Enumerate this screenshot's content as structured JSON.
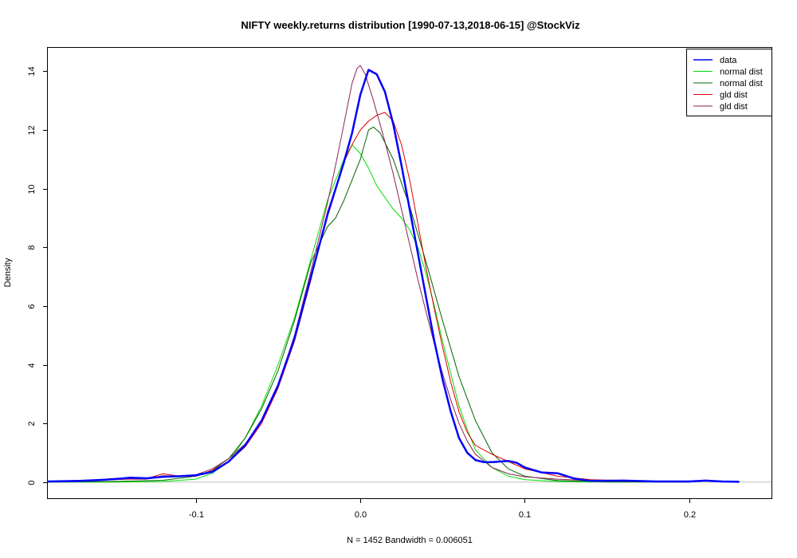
{
  "chart_data": {
    "type": "line",
    "title": "NIFTY weekly.returns distribution [1990-07-13,2018-06-15] @StockViz",
    "xlabel": "N = 1452   Bandwidth = 0.006051",
    "ylabel": "Density",
    "xlim": [
      -0.19,
      0.25
    ],
    "ylim": [
      -0.55,
      14.8
    ],
    "x_ticks": [
      -0.1,
      0.0,
      0.1,
      0.2
    ],
    "x_tick_labels": [
      "-0.1",
      "0.0",
      "0.1",
      "0.2"
    ],
    "y_ticks": [
      0,
      2,
      4,
      6,
      8,
      10,
      12,
      14
    ],
    "y_tick_labels": [
      "0",
      "2",
      "4",
      "6",
      "8",
      "10",
      "12",
      "14"
    ],
    "baseline": 0,
    "legend_position": "top-right",
    "series": [
      {
        "name": "data",
        "color": "#0000ff",
        "width": 2.5,
        "points": [
          [
            -0.19,
            0.02
          ],
          [
            -0.17,
            0.04
          ],
          [
            -0.155,
            0.08
          ],
          [
            -0.145,
            0.12
          ],
          [
            -0.14,
            0.15
          ],
          [
            -0.13,
            0.13
          ],
          [
            -0.12,
            0.18
          ],
          [
            -0.11,
            0.2
          ],
          [
            -0.1,
            0.23
          ],
          [
            -0.09,
            0.35
          ],
          [
            -0.08,
            0.7
          ],
          [
            -0.07,
            1.25
          ],
          [
            -0.06,
            2.1
          ],
          [
            -0.05,
            3.3
          ],
          [
            -0.04,
            4.9
          ],
          [
            -0.03,
            7.0
          ],
          [
            -0.02,
            9.1
          ],
          [
            -0.01,
            10.9
          ],
          [
            -0.005,
            11.9
          ],
          [
            0.0,
            13.2
          ],
          [
            0.005,
            14.05
          ],
          [
            0.01,
            13.9
          ],
          [
            0.015,
            13.3
          ],
          [
            0.02,
            12.2
          ],
          [
            0.025,
            10.8
          ],
          [
            0.03,
            9.3
          ],
          [
            0.035,
            7.8
          ],
          [
            0.04,
            6.3
          ],
          [
            0.045,
            4.8
          ],
          [
            0.05,
            3.5
          ],
          [
            0.055,
            2.4
          ],
          [
            0.06,
            1.5
          ],
          [
            0.065,
            1.0
          ],
          [
            0.07,
            0.75
          ],
          [
            0.075,
            0.68
          ],
          [
            0.08,
            0.68
          ],
          [
            0.085,
            0.7
          ],
          [
            0.09,
            0.72
          ],
          [
            0.095,
            0.66
          ],
          [
            0.1,
            0.5
          ],
          [
            0.11,
            0.33
          ],
          [
            0.12,
            0.3
          ],
          [
            0.13,
            0.12
          ],
          [
            0.14,
            0.04
          ],
          [
            0.16,
            0.05
          ],
          [
            0.18,
            0.02
          ],
          [
            0.2,
            0.02
          ],
          [
            0.21,
            0.05
          ],
          [
            0.22,
            0.02
          ],
          [
            0.23,
            0.01
          ]
        ]
      },
      {
        "name": "normal dist",
        "color": "#00e000",
        "width": 1,
        "points": [
          [
            -0.19,
            0.0
          ],
          [
            -0.15,
            0.0
          ],
          [
            -0.12,
            0.02
          ],
          [
            -0.1,
            0.1
          ],
          [
            -0.09,
            0.3
          ],
          [
            -0.08,
            0.7
          ],
          [
            -0.07,
            1.5
          ],
          [
            -0.06,
            2.6
          ],
          [
            -0.05,
            4.0
          ],
          [
            -0.04,
            5.6
          ],
          [
            -0.03,
            7.6
          ],
          [
            -0.02,
            9.6
          ],
          [
            -0.01,
            11.0
          ],
          [
            -0.005,
            11.5
          ],
          [
            0.0,
            11.2
          ],
          [
            0.005,
            10.7
          ],
          [
            0.01,
            10.1
          ],
          [
            0.015,
            9.7
          ],
          [
            0.02,
            9.3
          ],
          [
            0.025,
            9.0
          ],
          [
            0.03,
            8.6
          ],
          [
            0.035,
            8.0
          ],
          [
            0.04,
            7.1
          ],
          [
            0.045,
            6.0
          ],
          [
            0.05,
            4.8
          ],
          [
            0.055,
            3.7
          ],
          [
            0.06,
            2.6
          ],
          [
            0.065,
            1.8
          ],
          [
            0.07,
            1.1
          ],
          [
            0.08,
            0.5
          ],
          [
            0.09,
            0.2
          ],
          [
            0.1,
            0.08
          ],
          [
            0.12,
            0.02
          ],
          [
            0.15,
            0.0
          ],
          [
            0.2,
            0.0
          ]
        ]
      },
      {
        "name": "normal dist",
        "color": "#006400",
        "width": 1,
        "points": [
          [
            -0.19,
            0.0
          ],
          [
            -0.15,
            0.02
          ],
          [
            -0.12,
            0.06
          ],
          [
            -0.1,
            0.2
          ],
          [
            -0.09,
            0.4
          ],
          [
            -0.08,
            0.8
          ],
          [
            -0.07,
            1.5
          ],
          [
            -0.06,
            2.5
          ],
          [
            -0.05,
            3.8
          ],
          [
            -0.04,
            5.5
          ],
          [
            -0.03,
            7.5
          ],
          [
            -0.02,
            8.7
          ],
          [
            -0.015,
            9.0
          ],
          [
            -0.01,
            9.6
          ],
          [
            -0.005,
            10.3
          ],
          [
            0.0,
            11.0
          ],
          [
            0.005,
            12.0
          ],
          [
            0.008,
            12.1
          ],
          [
            0.012,
            11.9
          ],
          [
            0.02,
            11.0
          ],
          [
            0.03,
            9.4
          ],
          [
            0.04,
            7.5
          ],
          [
            0.05,
            5.5
          ],
          [
            0.06,
            3.6
          ],
          [
            0.07,
            2.1
          ],
          [
            0.08,
            1.0
          ],
          [
            0.09,
            0.45
          ],
          [
            0.1,
            0.2
          ],
          [
            0.12,
            0.05
          ],
          [
            0.15,
            0.01
          ],
          [
            0.2,
            0.0
          ]
        ]
      },
      {
        "name": "gld dist",
        "color": "#e00000",
        "width": 1,
        "points": [
          [
            -0.19,
            0.02
          ],
          [
            -0.17,
            0.05
          ],
          [
            -0.15,
            0.08
          ],
          [
            -0.13,
            0.12
          ],
          [
            -0.12,
            0.28
          ],
          [
            -0.11,
            0.2
          ],
          [
            -0.1,
            0.2
          ],
          [
            -0.09,
            0.4
          ],
          [
            -0.08,
            0.7
          ],
          [
            -0.07,
            1.2
          ],
          [
            -0.06,
            2.0
          ],
          [
            -0.05,
            3.2
          ],
          [
            -0.04,
            4.8
          ],
          [
            -0.03,
            6.9
          ],
          [
            -0.02,
            9.2
          ],
          [
            -0.01,
            10.9
          ],
          [
            -0.005,
            11.5
          ],
          [
            0.0,
            12.0
          ],
          [
            0.005,
            12.3
          ],
          [
            0.01,
            12.5
          ],
          [
            0.015,
            12.6
          ],
          [
            0.02,
            12.3
          ],
          [
            0.025,
            11.5
          ],
          [
            0.03,
            10.3
          ],
          [
            0.035,
            8.8
          ],
          [
            0.04,
            7.3
          ],
          [
            0.045,
            5.9
          ],
          [
            0.05,
            4.6
          ],
          [
            0.055,
            3.4
          ],
          [
            0.06,
            2.4
          ],
          [
            0.065,
            1.7
          ],
          [
            0.07,
            1.25
          ],
          [
            0.08,
            0.95
          ],
          [
            0.09,
            0.7
          ],
          [
            0.1,
            0.45
          ],
          [
            0.12,
            0.2
          ],
          [
            0.14,
            0.08
          ],
          [
            0.17,
            0.04
          ],
          [
            0.2,
            0.01
          ]
        ]
      },
      {
        "name": "gld dist",
        "color": "#8b2252",
        "width": 1,
        "points": [
          [
            -0.19,
            0.02
          ],
          [
            -0.17,
            0.06
          ],
          [
            -0.15,
            0.1
          ],
          [
            -0.13,
            0.1
          ],
          [
            -0.12,
            0.22
          ],
          [
            -0.11,
            0.2
          ],
          [
            -0.1,
            0.25
          ],
          [
            -0.09,
            0.45
          ],
          [
            -0.08,
            0.8
          ],
          [
            -0.07,
            1.3
          ],
          [
            -0.06,
            2.1
          ],
          [
            -0.05,
            3.3
          ],
          [
            -0.04,
            5.0
          ],
          [
            -0.03,
            7.2
          ],
          [
            -0.02,
            9.5
          ],
          [
            -0.015,
            10.8
          ],
          [
            -0.01,
            12.2
          ],
          [
            -0.005,
            13.6
          ],
          [
            -0.002,
            14.1
          ],
          [
            0.0,
            14.2
          ],
          [
            0.003,
            13.9
          ],
          [
            0.008,
            13.0
          ],
          [
            0.015,
            11.6
          ],
          [
            0.02,
            10.5
          ],
          [
            0.025,
            9.3
          ],
          [
            0.03,
            8.1
          ],
          [
            0.035,
            6.9
          ],
          [
            0.04,
            5.8
          ],
          [
            0.045,
            4.7
          ],
          [
            0.05,
            3.7
          ],
          [
            0.055,
            2.8
          ],
          [
            0.06,
            2.0
          ],
          [
            0.065,
            1.4
          ],
          [
            0.07,
            0.95
          ],
          [
            0.08,
            0.5
          ],
          [
            0.09,
            0.28
          ],
          [
            0.1,
            0.18
          ],
          [
            0.12,
            0.1
          ],
          [
            0.14,
            0.05
          ],
          [
            0.17,
            0.02
          ],
          [
            0.2,
            0.01
          ]
        ]
      }
    ]
  }
}
